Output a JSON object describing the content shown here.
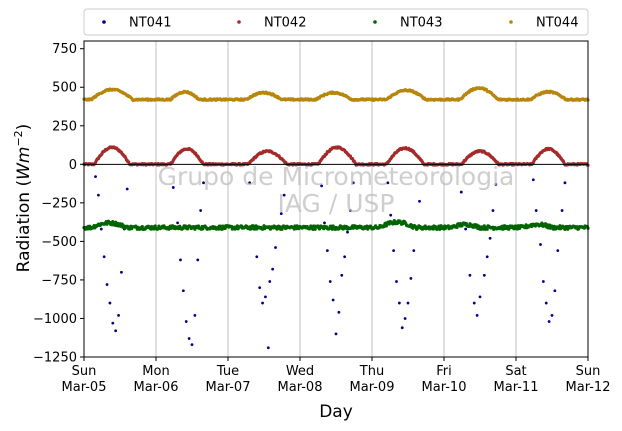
{
  "chart_data": {
    "type": "scatter",
    "title": "",
    "xlabel": "Day",
    "ylabel_prefix": "Radiation (",
    "ylabel_unit": "Wm",
    "ylabel_exp": "−2",
    "ylabel_suffix": ")",
    "ylim": [
      -1250,
      800
    ],
    "yticks": [
      -1250,
      -1000,
      -750,
      -500,
      -250,
      0,
      250,
      500,
      750
    ],
    "xlim_days": [
      0,
      7
    ],
    "xticks": [
      {
        "day": 0,
        "line1": "Sun",
        "line2": "Mar-05"
      },
      {
        "day": 1,
        "line1": "Mon",
        "line2": "Mar-06"
      },
      {
        "day": 2,
        "line1": "Tue",
        "line2": "Mar-07"
      },
      {
        "day": 3,
        "line1": "Wed",
        "line2": "Mar-08"
      },
      {
        "day": 4,
        "line1": "Thu",
        "line2": "Mar-09"
      },
      {
        "day": 5,
        "line1": "Fri",
        "line2": "Mar-10"
      },
      {
        "day": 6,
        "line1": "Sat",
        "line2": "Mar-11"
      },
      {
        "day": 7,
        "line1": "Sun",
        "line2": "Mar-12"
      }
    ],
    "x_grid": true,
    "zero_line": true,
    "legend_position": "top",
    "watermark_line1": "Grupo de Micrometeorologia",
    "watermark_line2": "IAG / USP",
    "series": [
      {
        "name": "NT041",
        "color": "#00008b",
        "points": [
          [
            0.16,
            -80
          ],
          [
            0.2,
            -200
          ],
          [
            0.24,
            -420
          ],
          [
            0.28,
            -600
          ],
          [
            0.32,
            -780
          ],
          [
            0.36,
            -900
          ],
          [
            0.4,
            -1030
          ],
          [
            0.44,
            -1080
          ],
          [
            0.48,
            -980
          ],
          [
            0.52,
            -700
          ],
          [
            0.56,
            -420
          ],
          [
            0.6,
            -160
          ],
          [
            1.24,
            -150
          ],
          [
            1.3,
            -380
          ],
          [
            1.34,
            -620
          ],
          [
            1.38,
            -820
          ],
          [
            1.42,
            -1020
          ],
          [
            1.46,
            -1130
          ],
          [
            1.5,
            -1170
          ],
          [
            1.54,
            -980
          ],
          [
            1.58,
            -620
          ],
          [
            1.62,
            -300
          ],
          [
            1.66,
            -120
          ],
          [
            2.3,
            -120
          ],
          [
            2.36,
            -420
          ],
          [
            2.4,
            -600
          ],
          [
            2.44,
            -800
          ],
          [
            2.48,
            -900
          ],
          [
            2.52,
            -860
          ],
          [
            2.58,
            -760
          ],
          [
            2.62,
            -680
          ],
          [
            2.66,
            -540
          ],
          [
            2.7,
            -400
          ],
          [
            2.74,
            -320
          ],
          [
            2.78,
            -200
          ],
          [
            2.56,
            -1190
          ],
          [
            3.3,
            -140
          ],
          [
            3.34,
            -380
          ],
          [
            3.38,
            -560
          ],
          [
            3.42,
            -760
          ],
          [
            3.46,
            -880
          ],
          [
            3.5,
            -1100
          ],
          [
            3.54,
            -960
          ],
          [
            3.58,
            -720
          ],
          [
            3.62,
            -600
          ],
          [
            3.66,
            -440
          ],
          [
            3.7,
            -300
          ],
          [
            3.74,
            -120
          ],
          [
            4.22,
            -120
          ],
          [
            4.26,
            -330
          ],
          [
            4.3,
            -560
          ],
          [
            4.34,
            -760
          ],
          [
            4.38,
            -900
          ],
          [
            4.42,
            -1060
          ],
          [
            4.46,
            -1000
          ],
          [
            4.5,
            -900
          ],
          [
            4.54,
            -740
          ],
          [
            4.58,
            -560
          ],
          [
            4.62,
            -420
          ],
          [
            4.66,
            -240
          ],
          [
            5.24,
            -180
          ],
          [
            5.3,
            -420
          ],
          [
            5.36,
            -720
          ],
          [
            5.42,
            -900
          ],
          [
            5.46,
            -980
          ],
          [
            5.5,
            -860
          ],
          [
            5.56,
            -720
          ],
          [
            5.6,
            -600
          ],
          [
            5.64,
            -480
          ],
          [
            5.68,
            -300
          ],
          [
            5.72,
            -130
          ],
          [
            6.24,
            -100
          ],
          [
            6.28,
            -300
          ],
          [
            6.34,
            -520
          ],
          [
            6.38,
            -760
          ],
          [
            6.42,
            -900
          ],
          [
            6.46,
            -1020
          ],
          [
            6.5,
            -980
          ],
          [
            6.54,
            -820
          ],
          [
            6.58,
            -560
          ],
          [
            6.64,
            -300
          ],
          [
            6.68,
            -120
          ]
        ]
      },
      {
        "name": "NT042",
        "color": "#a52a2a",
        "base": 0,
        "bumps": [
          {
            "start": 0.14,
            "end": 0.64,
            "peak": 110
          },
          {
            "start": 1.2,
            "end": 1.66,
            "peak": 100
          },
          {
            "start": 2.28,
            "end": 2.82,
            "peak": 85
          },
          {
            "start": 3.25,
            "end": 3.78,
            "peak": 110
          },
          {
            "start": 4.2,
            "end": 4.72,
            "peak": 105
          },
          {
            "start": 5.24,
            "end": 5.76,
            "peak": 85
          },
          {
            "start": 6.22,
            "end": 6.68,
            "peak": 100
          }
        ]
      },
      {
        "name": "NT043",
        "color": "#006400",
        "base": -410,
        "bumps": [
          {
            "start": 0.1,
            "end": 0.6,
            "peak": 30
          },
          {
            "start": 4.1,
            "end": 4.6,
            "peak": 35
          },
          {
            "start": 5.1,
            "end": 5.5,
            "peak": 20
          },
          {
            "start": 6.1,
            "end": 6.5,
            "peak": 20
          }
        ]
      },
      {
        "name": "NT044",
        "color": "#b8860b",
        "base": 420,
        "bumps": [
          {
            "start": 0.1,
            "end": 0.68,
            "peak": 65
          },
          {
            "start": 1.2,
            "end": 1.6,
            "peak": 50
          },
          {
            "start": 2.25,
            "end": 2.75,
            "peak": 45
          },
          {
            "start": 3.22,
            "end": 3.72,
            "peak": 45
          },
          {
            "start": 4.2,
            "end": 4.75,
            "peak": 60
          },
          {
            "start": 5.22,
            "end": 5.75,
            "peak": 75
          },
          {
            "start": 6.2,
            "end": 6.7,
            "peak": 50
          }
        ]
      }
    ]
  }
}
